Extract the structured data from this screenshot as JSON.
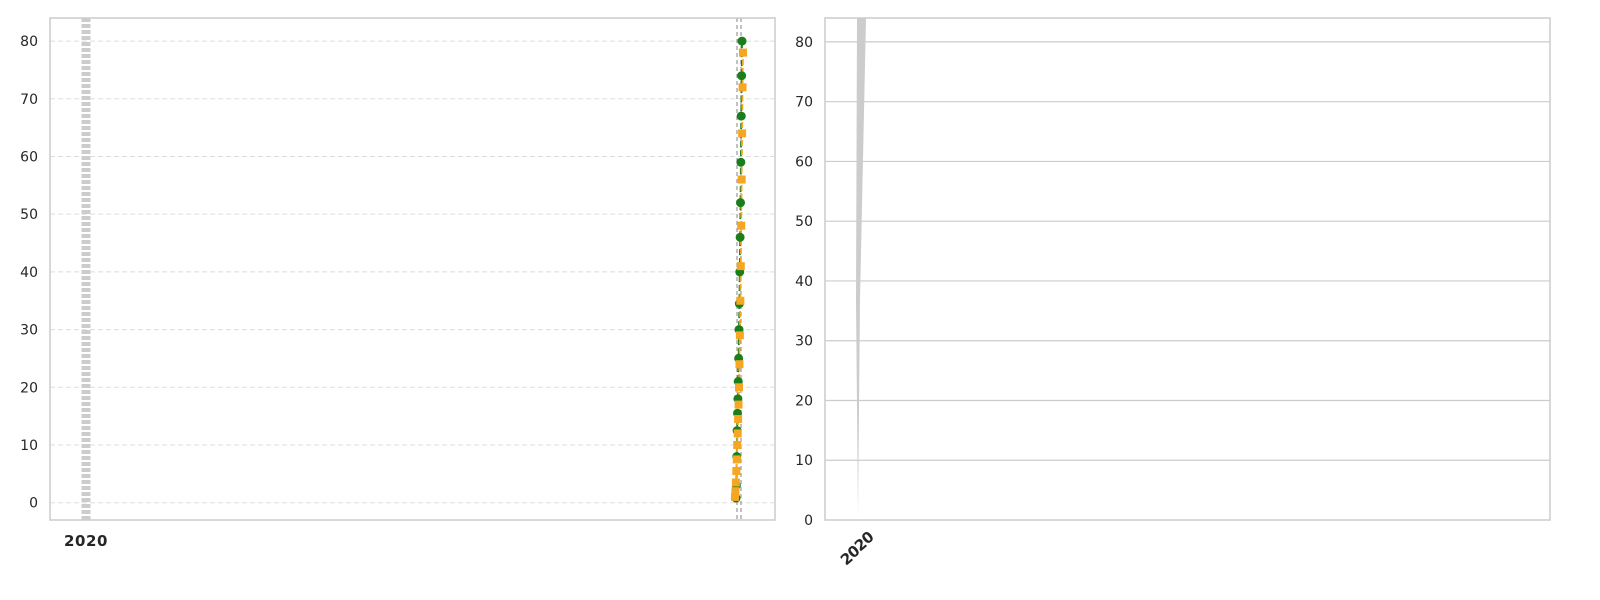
{
  "colors": {
    "background": "#ffffff",
    "frame": "#cccccc",
    "grid_left": "#dddddd",
    "grid_right": "#cccccc",
    "band": "#cccccc",
    "text": "#262626",
    "series_1": "#1a7f1a",
    "series_2": "#f5a623",
    "reference_line": "#999999"
  },
  "chart_data": [
    {
      "type": "line",
      "title": "",
      "xlabel": "",
      "ylabel": "",
      "ylim": [
        -3,
        84
      ],
      "yticks": [
        0,
        10,
        20,
        30,
        40,
        50,
        60,
        70,
        80
      ],
      "grid": "dashed horizontal",
      "legend": "none",
      "xtick_labels_note": "overlapping illegible labels at far left",
      "xtick_label_glyphs": [
        "2",
        "0",
        "2",
        "0"
      ],
      "shaded_band": "dotted grey band at far left of x-axis",
      "reference_lines": "two dashed grey vertical lines near the right edge",
      "series": [
        {
          "marker": "circle",
          "color": "#1a7f1a",
          "values": [
            0.8,
            3.0,
            8.0,
            12.5,
            15.5,
            18.0,
            21.0,
            25.0,
            30.0,
            34.5,
            40.0,
            46.0,
            52.0,
            59.0,
            67.0,
            74.0,
            80.0
          ]
        },
        {
          "marker": "square",
          "color": "#f5a623",
          "values": [
            1.0,
            2.0,
            3.5,
            5.5,
            7.5,
            10.0,
            12.0,
            14.5,
            17.0,
            20.0,
            24.0,
            29.0,
            35.0,
            41.0,
            48.0,
            56.0,
            64.0,
            72.0,
            78.0
          ]
        }
      ]
    },
    {
      "type": "area",
      "title": "",
      "xlabel": "",
      "ylabel": "",
      "ylim": [
        0,
        84
      ],
      "yticks": [
        0,
        10,
        20,
        30,
        40,
        50,
        60,
        70,
        80
      ],
      "grid": "solid horizontal",
      "legend": "none",
      "xtick_labels_note": "overlapping rotated illegible labels at far left",
      "xtick_label_glyphs": [
        "2",
        "0",
        "2",
        "0"
      ],
      "series": [
        {
          "color": "#cccccc",
          "shape": "thin grey vertical wedge rising from 0 to above 84 at the far left"
        }
      ]
    }
  ]
}
